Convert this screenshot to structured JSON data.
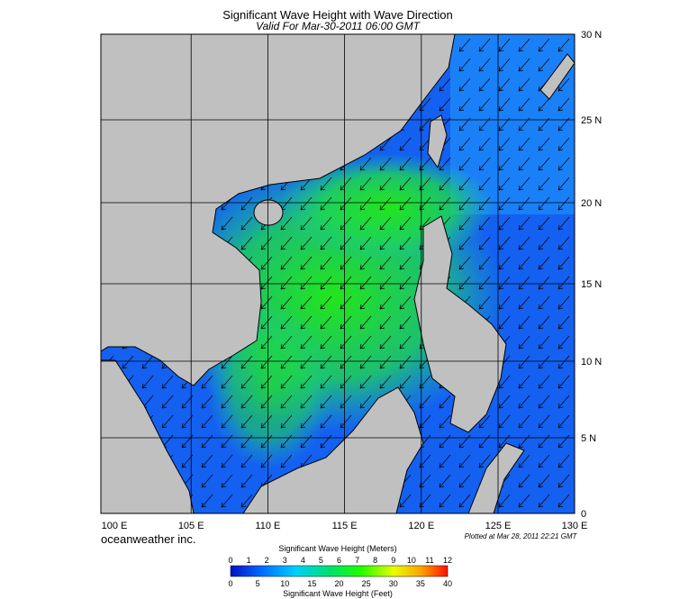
{
  "header": {
    "title": "Significant Wave Height with Wave Direction",
    "subtitle": "Valid For Mar-30-2011 06:00 GMT"
  },
  "map": {
    "lat_labels": [
      "30 N",
      "25 N",
      "20 N",
      "15 N",
      "10 N",
      "5 N",
      "0"
    ],
    "lon_labels": [
      "100 E",
      "105 E",
      "110 E",
      "115 E",
      "120 E",
      "125 E",
      "130 E"
    ]
  },
  "footer": {
    "brand": "oceanweather inc.",
    "plotted": "Plotted at Mar 28, 2011 22:21 GMT"
  },
  "legend": {
    "meters_title": "Significant Wave Height (Meters)",
    "meters_ticks": [
      0,
      1,
      2,
      3,
      4,
      5,
      6,
      7,
      8,
      9,
      10,
      11,
      12
    ],
    "feet_ticks": [
      0,
      5,
      10,
      15,
      20,
      25,
      30,
      35,
      40
    ],
    "feet_title": "Significant Wave Height (Feet)"
  }
}
